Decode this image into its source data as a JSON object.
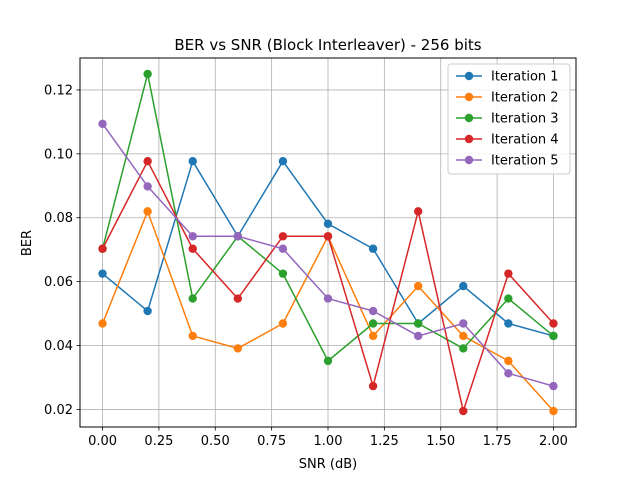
{
  "chart_data": {
    "type": "line",
    "title": "BER vs SNR (Block Interleaver) - 256 bits",
    "xlabel": "SNR (dB)",
    "ylabel": "BER",
    "xlim": [
      -0.1,
      2.1
    ],
    "ylim": [
      0.0145,
      0.13
    ],
    "x_ticks": [
      0.0,
      0.25,
      0.5,
      0.75,
      1.0,
      1.25,
      1.5,
      1.75,
      2.0
    ],
    "x_tick_labels": [
      "0.00",
      "0.25",
      "0.50",
      "0.75",
      "1.00",
      "1.25",
      "1.50",
      "1.75",
      "2.00"
    ],
    "y_ticks": [
      0.02,
      0.04,
      0.06,
      0.08,
      0.1,
      0.12
    ],
    "y_tick_labels": [
      "0.02",
      "0.04",
      "0.06",
      "0.08",
      "0.10",
      "0.12"
    ],
    "grid": true,
    "legend_position": "top-right",
    "x": [
      0.0,
      0.2,
      0.4,
      0.6,
      0.8,
      1.0,
      1.2,
      1.4,
      1.6,
      1.8,
      2.0
    ],
    "series": [
      {
        "name": "Iteration 1",
        "color": "#1f77b4",
        "values": [
          0.0625,
          0.0508,
          0.0977,
          0.0742,
          0.0977,
          0.0781,
          0.0703,
          0.0469,
          0.0586,
          0.0469,
          0.043
        ]
      },
      {
        "name": "Iteration 2",
        "color": "#ff7f0e",
        "values": [
          0.0469,
          0.082,
          0.043,
          0.0391,
          0.0469,
          0.0742,
          0.043,
          0.0586,
          0.043,
          0.0352,
          0.0195
        ]
      },
      {
        "name": "Iteration 3",
        "color": "#2ca02c",
        "values": [
          0.0703,
          0.125,
          0.0547,
          0.0742,
          0.0625,
          0.0352,
          0.0469,
          0.0469,
          0.0391,
          0.0547,
          0.043
        ]
      },
      {
        "name": "Iteration 4",
        "color": "#d62728",
        "values": [
          0.0703,
          0.0977,
          0.0703,
          0.0547,
          0.0742,
          0.0742,
          0.0273,
          0.082,
          0.0195,
          0.0625,
          0.0469
        ]
      },
      {
        "name": "Iteration 5",
        "color": "#9467bd",
        "values": [
          0.1094,
          0.0898,
          0.0742,
          0.0742,
          0.0703,
          0.0547,
          0.0508,
          0.043,
          0.0469,
          0.0313,
          0.0273
        ]
      }
    ]
  }
}
